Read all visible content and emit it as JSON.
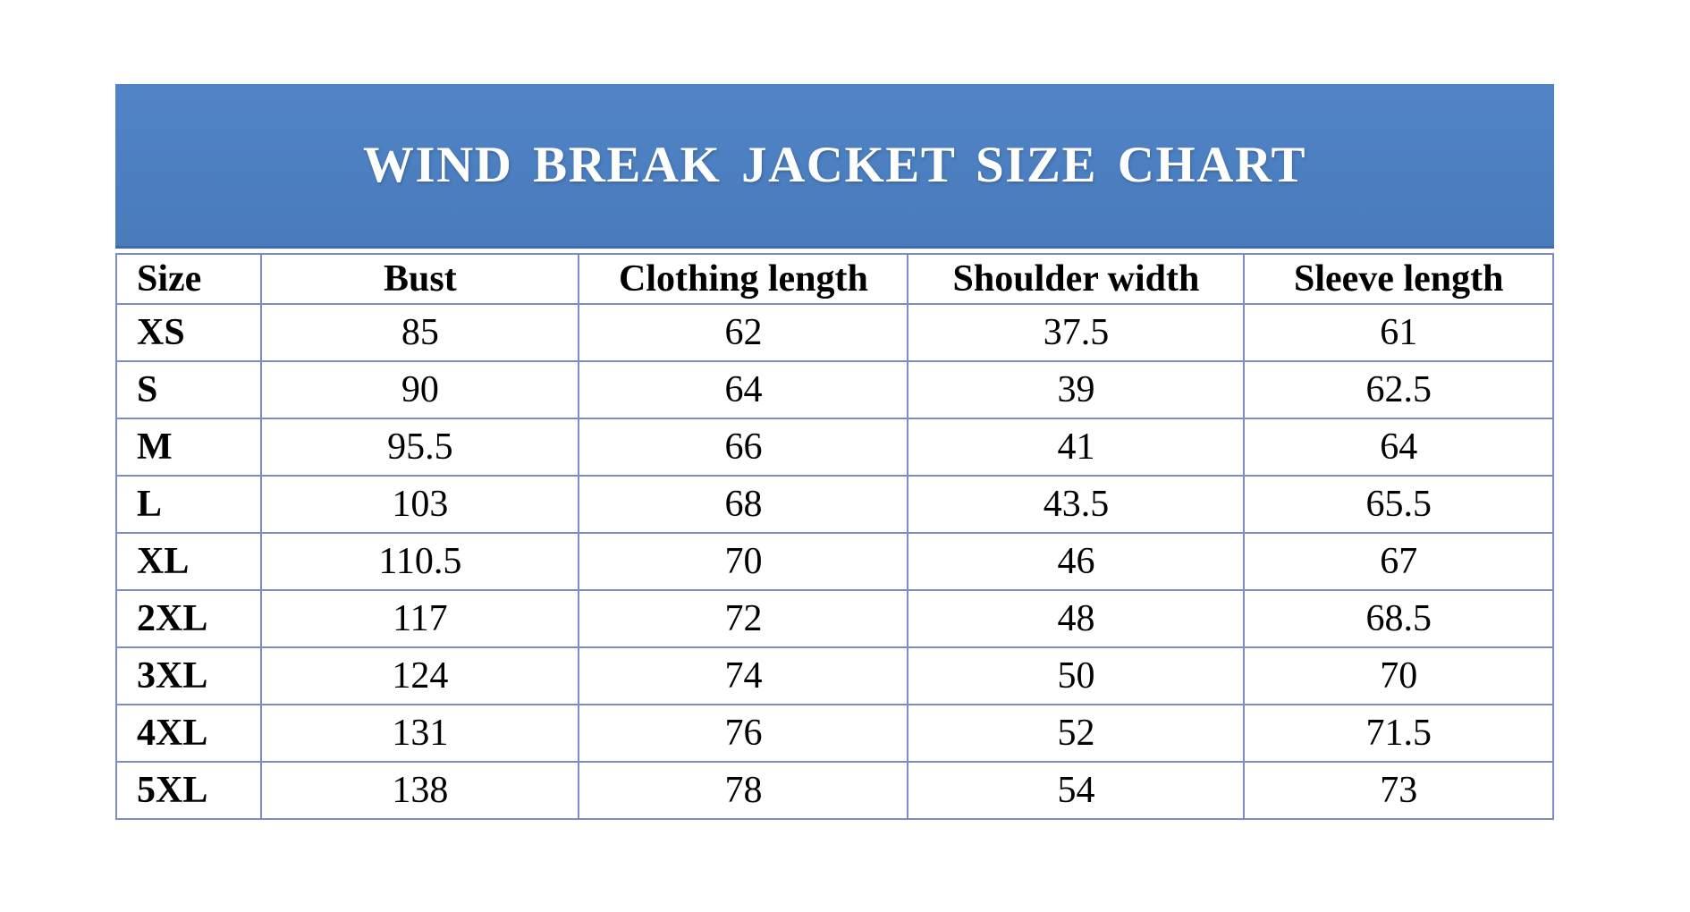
{
  "title_banner": {
    "text": "WIND BREAK JACKET SIZE CHART",
    "background_color": "#4c7fc0",
    "bottom_edge_color": "#3e6bab",
    "text_color": "#ffffff"
  },
  "table_style": {
    "grid_color": "#7e8cc6",
    "text_color": "#000000"
  },
  "chart_data": {
    "type": "table",
    "title": "WIND BREAK JACKET SIZE CHART",
    "columns": [
      "Size",
      "Bust",
      "Clothing length",
      "Shoulder width",
      "Sleeve length"
    ],
    "rows": [
      [
        "XS",
        "85",
        "62",
        "37.5",
        "61"
      ],
      [
        "S",
        "90",
        "64",
        "39",
        "62.5"
      ],
      [
        "M",
        "95.5",
        "66",
        "41",
        "64"
      ],
      [
        "L",
        "103",
        "68",
        "43.5",
        "65.5"
      ],
      [
        "XL",
        "110.5",
        "70",
        "46",
        "67"
      ],
      [
        "2XL",
        "117",
        "72",
        "48",
        "68.5"
      ],
      [
        "3XL",
        "124",
        "74",
        "50",
        "70"
      ],
      [
        "4XL",
        "131",
        "76",
        "52",
        "71.5"
      ],
      [
        "5XL",
        "138",
        "78",
        "54",
        "73"
      ]
    ]
  }
}
